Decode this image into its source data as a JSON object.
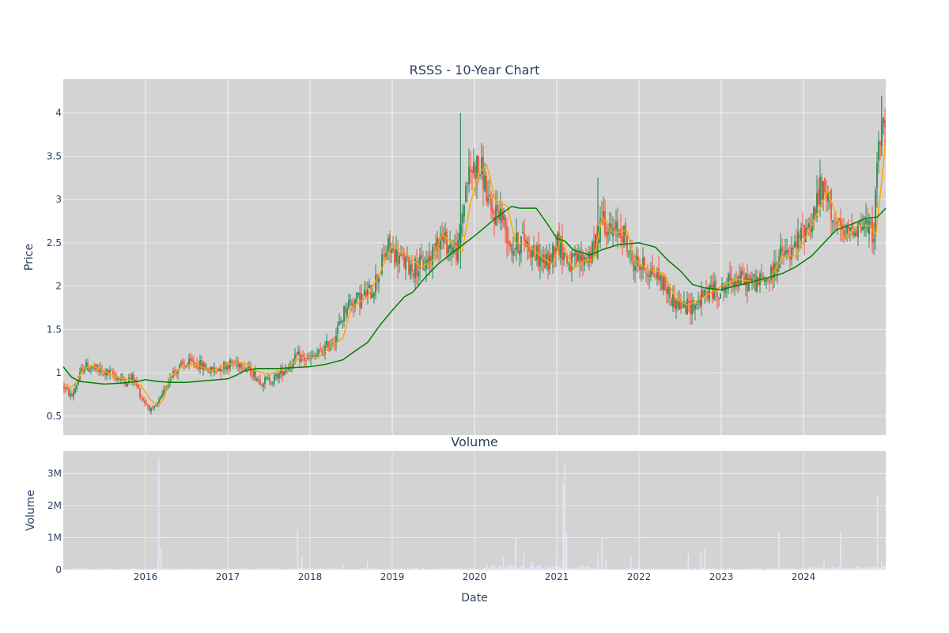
{
  "chart_data": [
    {
      "type": "candlestick",
      "title": "RSSS - 10-Year Chart",
      "xlabel": "",
      "ylabel": "Price",
      "xlim": [
        2015.0,
        2025.0
      ],
      "ylim": [
        0.28,
        4.39
      ],
      "yticks": [
        0.5,
        1,
        1.5,
        2,
        2.5,
        3,
        3.5,
        4
      ],
      "ytick_labels": [
        "0.5",
        "1",
        "1.5",
        "2",
        "2.5",
        "3",
        "3.5",
        "4"
      ],
      "xticks": [
        2016,
        2017,
        2018,
        2019,
        2020,
        2021,
        2022,
        2023,
        2024
      ],
      "xtick_labels": [
        "",
        "",
        "",
        "",
        "",
        "",
        "",
        "",
        ""
      ],
      "grid": true,
      "colors": {
        "up": "#2e8b57",
        "down": "#ef553b",
        "ma_short": "#ffa500",
        "ma_long": "#008000",
        "plot_bg": "#d3d3d3",
        "grid": "#ebebeb"
      },
      "close_anchors": [
        [
          2015.0,
          0.85
        ],
        [
          2015.1,
          0.72
        ],
        [
          2015.25,
          1.08
        ],
        [
          2015.45,
          1.02
        ],
        [
          2015.6,
          0.98
        ],
        [
          2015.75,
          0.9
        ],
        [
          2015.85,
          0.95
        ],
        [
          2015.95,
          0.72
        ],
        [
          2016.08,
          0.55
        ],
        [
          2016.2,
          0.72
        ],
        [
          2016.3,
          0.98
        ],
        [
          2016.45,
          1.08
        ],
        [
          2016.6,
          1.12
        ],
        [
          2016.8,
          1.02
        ],
        [
          2017.0,
          1.1
        ],
        [
          2017.15,
          1.12
        ],
        [
          2017.3,
          1.0
        ],
        [
          2017.4,
          0.9
        ],
        [
          2017.55,
          0.92
        ],
        [
          2017.7,
          1.05
        ],
        [
          2017.85,
          1.18
        ],
        [
          2018.0,
          1.15
        ],
        [
          2018.15,
          1.25
        ],
        [
          2018.3,
          1.4
        ],
        [
          2018.45,
          1.8
        ],
        [
          2018.6,
          1.85
        ],
        [
          2018.75,
          1.95
        ],
        [
          2018.85,
          2.2
        ],
        [
          2018.95,
          2.45
        ],
        [
          2019.1,
          2.3
        ],
        [
          2019.25,
          2.22
        ],
        [
          2019.4,
          2.25
        ],
        [
          2019.5,
          2.4
        ],
        [
          2019.55,
          2.6
        ],
        [
          2019.65,
          2.5
        ],
        [
          2019.8,
          2.4
        ],
        [
          2019.9,
          3.2
        ],
        [
          2020.0,
          3.4
        ],
        [
          2020.1,
          3.3
        ],
        [
          2020.2,
          2.8
        ],
        [
          2020.3,
          2.9
        ],
        [
          2020.45,
          2.45
        ],
        [
          2020.6,
          2.55
        ],
        [
          2020.75,
          2.35
        ],
        [
          2020.9,
          2.25
        ],
        [
          2021.0,
          2.55
        ],
        [
          2021.15,
          2.25
        ],
        [
          2021.3,
          2.3
        ],
        [
          2021.45,
          2.4
        ],
        [
          2021.55,
          2.85
        ],
        [
          2021.65,
          2.6
        ],
        [
          2021.8,
          2.65
        ],
        [
          2021.9,
          2.3
        ],
        [
          2022.1,
          2.2
        ],
        [
          2022.25,
          2.1
        ],
        [
          2022.4,
          1.85
        ],
        [
          2022.55,
          1.75
        ],
        [
          2022.7,
          1.8
        ],
        [
          2022.85,
          1.95
        ],
        [
          2023.0,
          1.95
        ],
        [
          2023.15,
          2.1
        ],
        [
          2023.3,
          2.05
        ],
        [
          2023.45,
          2.05
        ],
        [
          2023.6,
          2.1
        ],
        [
          2023.7,
          2.35
        ],
        [
          2023.85,
          2.35
        ],
        [
          2024.0,
          2.65
        ],
        [
          2024.1,
          2.75
        ],
        [
          2024.2,
          3.1
        ],
        [
          2024.3,
          3.0
        ],
        [
          2024.4,
          2.7
        ],
        [
          2024.5,
          2.55
        ],
        [
          2024.6,
          2.7
        ],
        [
          2024.75,
          2.7
        ],
        [
          2024.85,
          2.6
        ],
        [
          2024.92,
          3.7
        ],
        [
          2025.0,
          3.9
        ]
      ],
      "series": [
        {
          "values": [
            [
              2015.0,
              0.88
            ],
            [
              2015.08,
              0.82
            ],
            [
              2015.15,
              0.88
            ],
            [
              2015.25,
              1.05
            ],
            [
              2015.35,
              1.08
            ],
            [
              2015.5,
              1.02
            ],
            [
              2015.65,
              0.95
            ],
            [
              2015.8,
              0.92
            ],
            [
              2015.95,
              0.85
            ],
            [
              2016.05,
              0.7
            ],
            [
              2016.15,
              0.62
            ],
            [
              2016.22,
              0.7
            ],
            [
              2016.3,
              0.95
            ],
            [
              2016.45,
              1.08
            ],
            [
              2016.6,
              1.1
            ],
            [
              2016.8,
              1.02
            ],
            [
              2017.0,
              1.1
            ],
            [
              2017.2,
              1.12
            ],
            [
              2017.35,
              1.02
            ],
            [
              2017.5,
              0.98
            ],
            [
              2017.7,
              1.05
            ],
            [
              2017.9,
              1.18
            ],
            [
              2018.1,
              1.18
            ],
            [
              2018.25,
              1.3
            ],
            [
              2018.4,
              1.4
            ],
            [
              2018.5,
              1.75
            ],
            [
              2018.7,
              1.88
            ],
            [
              2018.85,
              2.15
            ],
            [
              2019.0,
              2.48
            ],
            [
              2019.2,
              2.35
            ],
            [
              2019.35,
              2.22
            ],
            [
              2019.5,
              2.3
            ],
            [
              2019.6,
              2.6
            ],
            [
              2019.75,
              2.48
            ],
            [
              2019.85,
              2.4
            ],
            [
              2019.95,
              2.95
            ],
            [
              2020.05,
              3.3
            ],
            [
              2020.15,
              3.4
            ],
            [
              2020.25,
              3.0
            ],
            [
              2020.4,
              2.92
            ],
            [
              2020.5,
              2.5
            ],
            [
              2020.65,
              2.48
            ],
            [
              2020.8,
              2.35
            ],
            [
              2020.95,
              2.25
            ],
            [
              2021.05,
              2.55
            ],
            [
              2021.2,
              2.2
            ],
            [
              2021.35,
              2.3
            ],
            [
              2021.45,
              2.3
            ],
            [
              2021.55,
              2.8
            ],
            [
              2021.7,
              2.6
            ],
            [
              2021.85,
              2.65
            ],
            [
              2021.95,
              2.3
            ],
            [
              2022.1,
              2.2
            ],
            [
              2022.3,
              2.15
            ],
            [
              2022.45,
              1.85
            ],
            [
              2022.6,
              1.78
            ],
            [
              2022.8,
              1.88
            ],
            [
              2023.0,
              2.0
            ],
            [
              2023.2,
              2.08
            ],
            [
              2023.4,
              2.05
            ],
            [
              2023.6,
              2.1
            ],
            [
              2023.75,
              2.35
            ],
            [
              2023.9,
              2.35
            ],
            [
              2024.05,
              2.6
            ],
            [
              2024.15,
              2.8
            ],
            [
              2024.3,
              3.1
            ],
            [
              2024.4,
              2.8
            ],
            [
              2024.5,
              2.55
            ],
            [
              2024.65,
              2.7
            ],
            [
              2024.8,
              2.7
            ],
            [
              2024.88,
              2.6
            ],
            [
              2024.95,
              3.2
            ],
            [
              2025.0,
              3.68
            ]
          ]
        },
        {
          "values": [
            [
              2015.0,
              1.07
            ],
            [
              2015.1,
              0.95
            ],
            [
              2015.2,
              0.9
            ],
            [
              2015.4,
              0.88
            ],
            [
              2015.5,
              0.87
            ],
            [
              2015.7,
              0.88
            ],
            [
              2015.9,
              0.9
            ],
            [
              2016.0,
              0.92
            ],
            [
              2016.15,
              0.9
            ],
            [
              2016.3,
              0.89
            ],
            [
              2016.5,
              0.89
            ],
            [
              2016.75,
              0.91
            ],
            [
              2017.0,
              0.93
            ],
            [
              2017.1,
              0.97
            ],
            [
              2017.2,
              1.02
            ],
            [
              2017.35,
              1.05
            ],
            [
              2017.6,
              1.05
            ],
            [
              2017.8,
              1.06
            ],
            [
              2018.0,
              1.07
            ],
            [
              2018.2,
              1.1
            ],
            [
              2018.4,
              1.15
            ],
            [
              2018.5,
              1.22
            ],
            [
              2018.7,
              1.35
            ],
            [
              2018.85,
              1.55
            ],
            [
              2019.0,
              1.72
            ],
            [
              2019.15,
              1.88
            ],
            [
              2019.25,
              1.93
            ],
            [
              2019.4,
              2.1
            ],
            [
              2019.55,
              2.25
            ],
            [
              2019.75,
              2.4
            ],
            [
              2020.0,
              2.58
            ],
            [
              2020.25,
              2.78
            ],
            [
              2020.45,
              2.92
            ],
            [
              2020.55,
              2.9
            ],
            [
              2020.75,
              2.9
            ],
            [
              2020.9,
              2.7
            ],
            [
              2021.0,
              2.55
            ],
            [
              2021.1,
              2.52
            ],
            [
              2021.2,
              2.42
            ],
            [
              2021.4,
              2.36
            ],
            [
              2021.55,
              2.42
            ],
            [
              2021.75,
              2.48
            ],
            [
              2022.0,
              2.5
            ],
            [
              2022.2,
              2.45
            ],
            [
              2022.35,
              2.3
            ],
            [
              2022.5,
              2.18
            ],
            [
              2022.65,
              2.02
            ],
            [
              2022.8,
              1.98
            ],
            [
              2023.0,
              1.96
            ],
            [
              2023.25,
              2.02
            ],
            [
              2023.5,
              2.08
            ],
            [
              2023.75,
              2.15
            ],
            [
              2023.9,
              2.22
            ],
            [
              2024.1,
              2.35
            ],
            [
              2024.25,
              2.5
            ],
            [
              2024.4,
              2.65
            ],
            [
              2024.6,
              2.72
            ],
            [
              2024.75,
              2.78
            ],
            [
              2024.9,
              2.8
            ],
            [
              2025.0,
              2.9
            ]
          ]
        }
      ]
    },
    {
      "type": "bar",
      "title": "Volume",
      "xlabel": "Date",
      "ylabel": "Volume",
      "xlim": [
        2015.0,
        2025.0
      ],
      "ylim": [
        0,
        3700000
      ],
      "yticks": [
        0,
        1000000,
        2000000,
        3000000
      ],
      "ytick_labels": [
        "0",
        "1M",
        "2M",
        "3M"
      ],
      "xticks": [
        2016,
        2017,
        2018,
        2019,
        2020,
        2021,
        2022,
        2023,
        2024
      ],
      "xtick_labels": [
        "2016",
        "2017",
        "2018",
        "2019",
        "2020",
        "2021",
        "2022",
        "2023",
        "2024"
      ],
      "grid": true,
      "colors": {
        "bar": "#e6e6fa"
      },
      "spikes": [
        [
          2016.16,
          3500000
        ],
        [
          2016.19,
          700000
        ],
        [
          2016.15,
          300000
        ],
        [
          2017.0,
          150000
        ],
        [
          2017.85,
          1250000
        ],
        [
          2017.9,
          400000
        ],
        [
          2018.4,
          150000
        ],
        [
          2018.7,
          250000
        ],
        [
          2020.15,
          150000
        ],
        [
          2020.35,
          400000
        ],
        [
          2020.5,
          1000000
        ],
        [
          2020.6,
          550000
        ],
        [
          2020.7,
          250000
        ],
        [
          2021.0,
          650000
        ],
        [
          2021.08,
          2700000
        ],
        [
          2021.1,
          3300000
        ],
        [
          2021.12,
          1100000
        ],
        [
          2021.5,
          500000
        ],
        [
          2021.55,
          1000000
        ],
        [
          2021.6,
          300000
        ],
        [
          2021.9,
          400000
        ],
        [
          2022.0,
          350000
        ],
        [
          2022.6,
          500000
        ],
        [
          2022.75,
          600000
        ],
        [
          2022.8,
          650000
        ],
        [
          2023.7,
          1200000
        ],
        [
          2024.25,
          350000
        ],
        [
          2024.45,
          1200000
        ],
        [
          2024.9,
          2300000
        ],
        [
          2024.95,
          250000
        ]
      ]
    }
  ]
}
